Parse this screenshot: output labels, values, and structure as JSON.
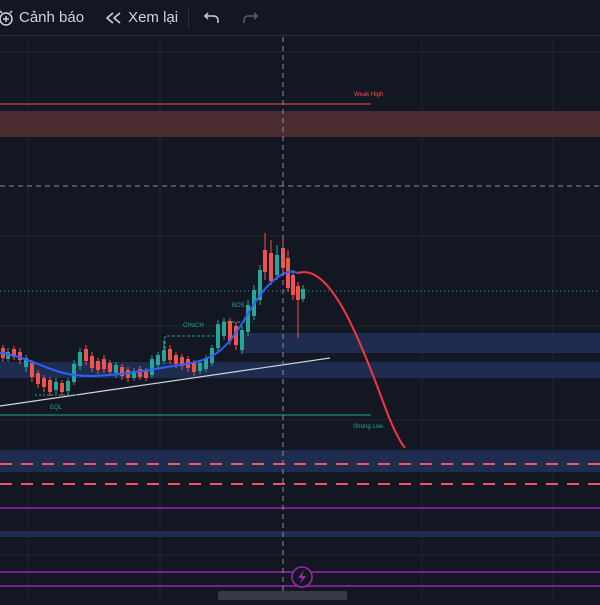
{
  "toolbar": {
    "alert_label": "Cảnh báo",
    "alert_icon": "alarm-clock-plus-icon",
    "replay_label": "Xem lại",
    "replay_icon": "rewind-icon",
    "undo_icon": "undo-icon",
    "redo_icon": "redo-icon"
  },
  "chart": {
    "annotations": {
      "weak_high": "Weak High",
      "strong_low": "Strong Low",
      "choch": "CHoCH",
      "bos": "BOS",
      "eql": "EQL"
    },
    "trading_icon": "lightning-icon",
    "colors": {
      "background": "#131722",
      "bullish": "#26a69a",
      "bearish": "#ef5350",
      "moving_average": "#2962ff",
      "projection": "#f23645",
      "trendline": "#d1d4dc",
      "supply_zone": "#4a2b30",
      "demand_zone": "#1e2d4f",
      "dashed_level": "#f7525f",
      "purple_level": "#9c27b0"
    }
  }
}
